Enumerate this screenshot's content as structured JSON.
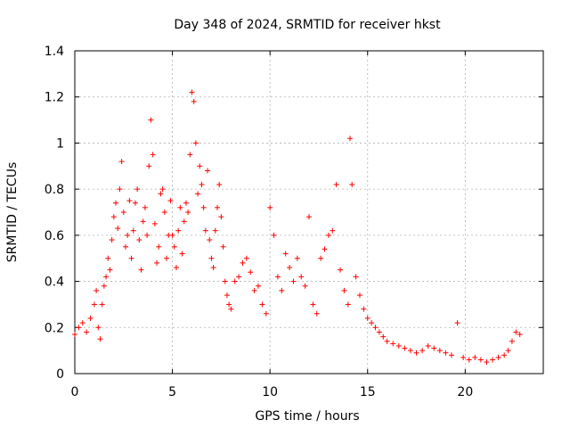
{
  "chart_data": {
    "type": "scatter",
    "title": "Day 348 of 2024, SRMTID for receiver hkst",
    "xlabel": "GPS time / hours",
    "ylabel": "SRMTID / TECUs",
    "xlim": [
      0,
      24
    ],
    "ylim": [
      0,
      1.4
    ],
    "xticks": [
      0,
      5,
      10,
      15,
      20
    ],
    "xtick_labels": [
      "0",
      "5",
      "10",
      "15",
      "20"
    ],
    "yticks": [
      0,
      0.2,
      0.4,
      0.6,
      0.8,
      1.0,
      1.2,
      1.4
    ],
    "ytick_labels": [
      "0",
      "0.2",
      "0.4",
      "0.6",
      "0.8",
      "1",
      "1.2",
      "1.4"
    ],
    "grid": true,
    "marker": "+",
    "series_color": "#ff0000",
    "series": [
      {
        "name": "SRMTID",
        "x": [
          0.0,
          0.2,
          0.4,
          0.6,
          0.8,
          1.0,
          1.1,
          1.2,
          1.3,
          1.4,
          1.5,
          1.6,
          1.7,
          1.8,
          1.9,
          2.0,
          2.1,
          2.2,
          2.3,
          2.4,
          2.5,
          2.6,
          2.7,
          2.8,
          2.9,
          3.0,
          3.1,
          3.2,
          3.3,
          3.4,
          3.5,
          3.6,
          3.7,
          3.8,
          3.9,
          4.0,
          4.1,
          4.2,
          4.3,
          4.4,
          4.5,
          4.6,
          4.7,
          4.8,
          4.9,
          5.0,
          5.1,
          5.2,
          5.3,
          5.4,
          5.5,
          5.6,
          5.7,
          5.8,
          5.9,
          6.0,
          6.1,
          6.2,
          6.3,
          6.4,
          6.5,
          6.6,
          6.7,
          6.8,
          6.9,
          7.0,
          7.1,
          7.2,
          7.3,
          7.4,
          7.5,
          7.6,
          7.7,
          7.8,
          7.9,
          8.0,
          8.2,
          8.4,
          8.6,
          8.8,
          9.0,
          9.2,
          9.4,
          9.6,
          9.8,
          10.0,
          10.2,
          10.4,
          10.6,
          10.8,
          11.0,
          11.2,
          11.4,
          11.6,
          11.8,
          12.0,
          12.2,
          12.4,
          12.6,
          12.8,
          13.0,
          13.2,
          13.4,
          13.6,
          13.8,
          14.0,
          14.1,
          14.2,
          14.4,
          14.6,
          14.8,
          15.0,
          15.2,
          15.4,
          15.6,
          15.8,
          16.0,
          16.3,
          16.6,
          16.9,
          17.2,
          17.5,
          17.8,
          18.1,
          18.4,
          18.7,
          19.0,
          19.3,
          19.6,
          19.9,
          20.2,
          20.5,
          20.8,
          21.1,
          21.4,
          21.7,
          22.0,
          22.2,
          22.4,
          22.6,
          22.8
        ],
        "y": [
          0.17,
          0.2,
          0.22,
          0.18,
          0.24,
          0.3,
          0.36,
          0.2,
          0.15,
          0.3,
          0.38,
          0.42,
          0.5,
          0.45,
          0.58,
          0.68,
          0.74,
          0.63,
          0.8,
          0.92,
          0.7,
          0.55,
          0.6,
          0.75,
          0.5,
          0.62,
          0.74,
          0.8,
          0.58,
          0.45,
          0.66,
          0.72,
          0.6,
          0.9,
          1.1,
          0.95,
          0.65,
          0.48,
          0.55,
          0.78,
          0.8,
          0.7,
          0.5,
          0.6,
          0.75,
          0.6,
          0.55,
          0.46,
          0.62,
          0.72,
          0.52,
          0.66,
          0.74,
          0.7,
          0.95,
          1.22,
          1.18,
          1.0,
          0.78,
          0.9,
          0.82,
          0.72,
          0.62,
          0.88,
          0.58,
          0.5,
          0.46,
          0.62,
          0.72,
          0.82,
          0.68,
          0.55,
          0.4,
          0.34,
          0.3,
          0.28,
          0.4,
          0.42,
          0.48,
          0.5,
          0.44,
          0.36,
          0.38,
          0.3,
          0.26,
          0.72,
          0.6,
          0.42,
          0.36,
          0.52,
          0.46,
          0.4,
          0.5,
          0.42,
          0.38,
          0.68,
          0.3,
          0.26,
          0.5,
          0.54,
          0.6,
          0.62,
          0.82,
          0.45,
          0.36,
          0.3,
          1.02,
          0.82,
          0.42,
          0.34,
          0.28,
          0.24,
          0.22,
          0.2,
          0.18,
          0.16,
          0.14,
          0.13,
          0.12,
          0.11,
          0.1,
          0.09,
          0.1,
          0.12,
          0.11,
          0.1,
          0.09,
          0.08,
          0.22,
          0.07,
          0.06,
          0.07,
          0.06,
          0.05,
          0.06,
          0.07,
          0.08,
          0.1,
          0.14,
          0.18,
          0.17
        ]
      }
    ]
  }
}
